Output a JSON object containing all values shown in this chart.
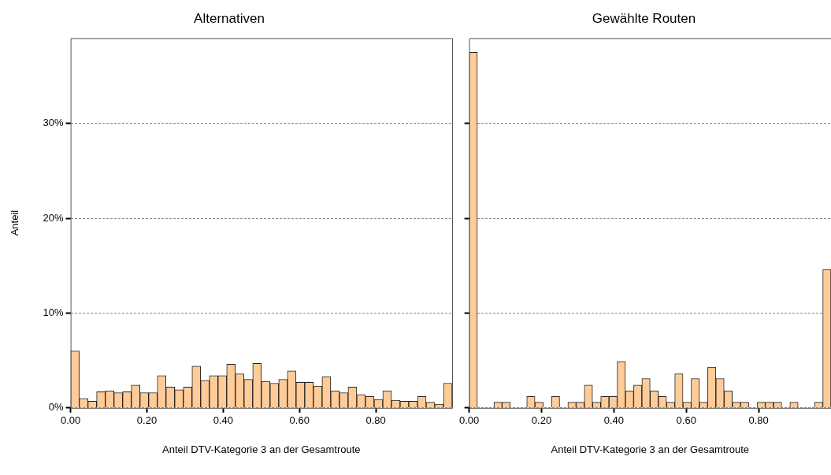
{
  "chart_data": [
    {
      "type": "histogram",
      "title": "Alternativen",
      "xlabel": "Anteil DTV-Kategorie 3 an der Gesamtroute",
      "ylabel": "Anteil",
      "bins": [
        0,
        0.0227,
        0.0455,
        0.0682,
        0.0909,
        0.1136,
        0.1364,
        0.1591,
        0.1818,
        0.2045,
        0.2273,
        0.25,
        0.2727,
        0.2955,
        0.3182,
        0.3409,
        0.3636,
        0.3864,
        0.4091,
        0.4318,
        0.4545,
        0.4773,
        0.5,
        0.5227,
        0.5455,
        0.5682,
        0.5909,
        0.6136,
        0.6364,
        0.6591,
        0.6818,
        0.7045,
        0.7273,
        0.75,
        0.7727,
        0.7955,
        0.8182,
        0.8409,
        0.8636,
        0.8864,
        0.9091,
        0.9318,
        0.9545,
        0.9773,
        1
      ],
      "values": [
        6.0,
        1.0,
        0.7,
        1.7,
        1.8,
        1.6,
        1.7,
        2.4,
        1.6,
        1.6,
        3.4,
        2.2,
        1.9,
        2.2,
        4.4,
        2.9,
        3.4,
        3.4,
        4.6,
        3.6,
        3.0,
        4.7,
        2.8,
        2.6,
        3.0,
        3.9,
        2.7,
        2.7,
        2.3,
        3.3,
        1.8,
        1.6,
        2.2,
        1.4,
        1.2,
        0.9,
        1.8,
        0.8,
        0.7,
        0.7,
        1.2,
        0.6,
        0.4,
        2.6
      ],
      "color": "#ffcc99",
      "xlim": [
        0,
        1
      ],
      "xticks": [
        {
          "value": 0,
          "label": "0.00"
        },
        {
          "value": 0.2,
          "label": "0.20"
        },
        {
          "value": 0.4,
          "label": "0.40"
        },
        {
          "value": 0.6,
          "label": "0.60"
        },
        {
          "value": 0.8,
          "label": "0.80"
        }
      ],
      "ylim": [
        0,
        39
      ],
      "yticks": [
        {
          "value": 0,
          "label": "0%"
        },
        {
          "value": 10,
          "label": "10%"
        },
        {
          "value": 20,
          "label": "20%"
        },
        {
          "value": 30,
          "label": "30%"
        }
      ],
      "grid": "y"
    },
    {
      "type": "histogram",
      "title": "Gewählte Routen",
      "xlabel": "Anteil DTV-Kategorie 3 an der Gesamtroute",
      "bins": [
        0,
        0.0227,
        0.0455,
        0.0682,
        0.0909,
        0.1136,
        0.1364,
        0.1591,
        0.1818,
        0.2045,
        0.2273,
        0.25,
        0.2727,
        0.2955,
        0.3182,
        0.3409,
        0.3636,
        0.3864,
        0.4091,
        0.4318,
        0.4545,
        0.4773,
        0.5,
        0.5227,
        0.5455,
        0.5682,
        0.5909,
        0.6136,
        0.6364,
        0.6591,
        0.6818,
        0.7045,
        0.7273,
        0.75,
        0.7727,
        0.7955,
        0.8182,
        0.8409,
        0.8636,
        0.8864,
        0.9091,
        0.9318,
        0.9545,
        0.9773,
        1
      ],
      "values": [
        37.5,
        0,
        0,
        0.6,
        0.6,
        0,
        0,
        1.2,
        0.6,
        0,
        1.2,
        0,
        0.6,
        0.6,
        2.4,
        0.6,
        1.2,
        1.2,
        4.9,
        1.8,
        2.4,
        3.1,
        1.8,
        1.2,
        0.6,
        3.6,
        0.6,
        3.1,
        0.6,
        4.3,
        3.1,
        1.8,
        0.6,
        0.6,
        0,
        0.6,
        0.6,
        0.6,
        0,
        0.6,
        0,
        0,
        0.6,
        14.6
      ],
      "color": "#ffcc99",
      "xlim": [
        0,
        1
      ],
      "xticks": [
        {
          "value": 0,
          "label": "0.00"
        },
        {
          "value": 0.2,
          "label": "0.20"
        },
        {
          "value": 0.4,
          "label": "0.40"
        },
        {
          "value": 0.6,
          "label": "0.60"
        },
        {
          "value": 0.8,
          "label": "0.80"
        }
      ],
      "ylim": [
        0,
        39
      ],
      "yticks": [
        {
          "value": 0,
          "label": null
        },
        {
          "value": 10,
          "label": null
        },
        {
          "value": 20,
          "label": null
        },
        {
          "value": 30,
          "label": null
        }
      ],
      "grid": "y",
      "tick_labels": "x"
    }
  ]
}
